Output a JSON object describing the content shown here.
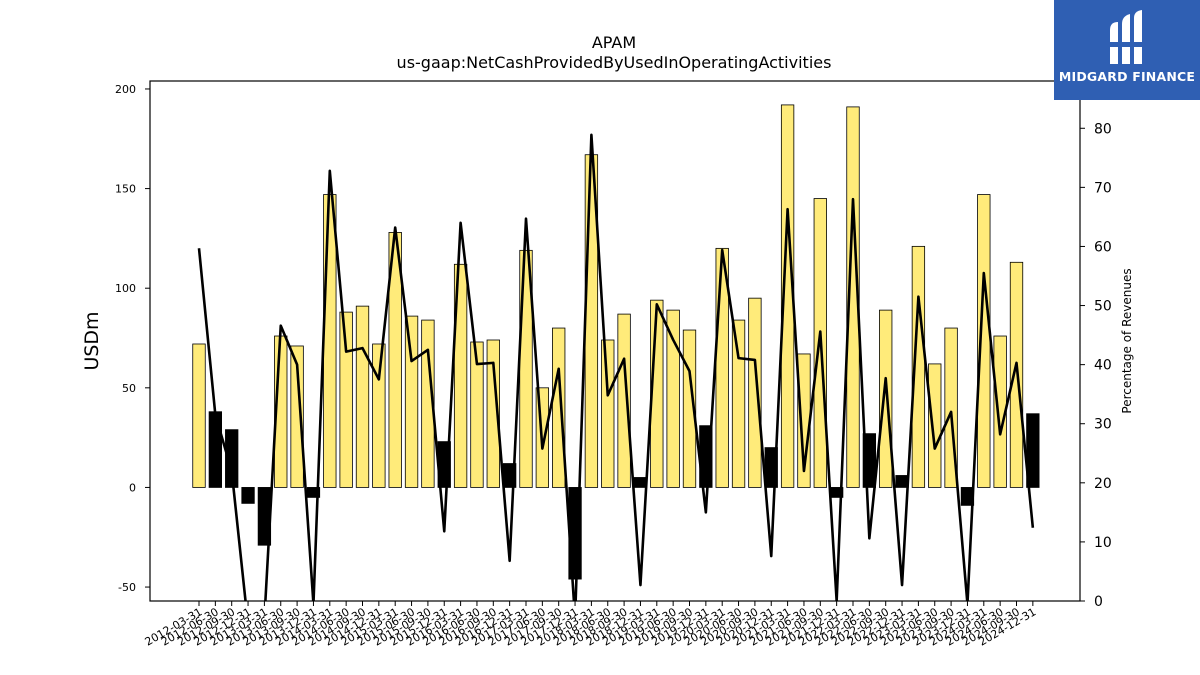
{
  "watermark": {
    "brand": "MIDGARD FINANCE",
    "bg_color": "#2f5fb3"
  },
  "chart_data": {
    "type": "bar",
    "title": "APAM",
    "subtitle": "us-gaap:NetCashProvidedByUsedInOperatingActivities",
    "ylabel": "USDm",
    "y2label": "Percentage of Revenues",
    "ylim": [
      -57,
      204
    ],
    "y2lim": [
      0,
      88
    ],
    "yticks": [
      -50,
      0,
      50,
      100,
      150,
      200
    ],
    "y2ticks": [
      0,
      10,
      20,
      30,
      40,
      50,
      60,
      70,
      80
    ],
    "categories": [
      "2012-03-31",
      "2012-06-30",
      "2012-09-30",
      "2012-12-31",
      "2013-03-31",
      "2013-06-30",
      "2013-09-30",
      "2013-12-31",
      "2014-03-31",
      "2014-06-30",
      "2014-09-30",
      "2014-12-31",
      "2015-03-31",
      "2015-06-30",
      "2015-09-30",
      "2015-12-31",
      "2016-03-31",
      "2016-06-30",
      "2016-09-30",
      "2016-12-31",
      "2017-03-31",
      "2017-06-30",
      "2017-09-30",
      "2017-12-31",
      "2018-03-31",
      "2018-06-30",
      "2018-09-30",
      "2018-12-31",
      "2019-03-31",
      "2019-06-30",
      "2019-09-30",
      "2019-12-31",
      "2020-03-31",
      "2020-06-30",
      "2020-09-30",
      "2020-12-31",
      "2021-03-31",
      "2021-06-30",
      "2021-09-30",
      "2021-12-31",
      "2022-03-31",
      "2022-06-30",
      "2022-09-30",
      "2022-12-31",
      "2023-03-31",
      "2023-06-30",
      "2023-09-30",
      "2023-12-31",
      "2024-03-31",
      "2024-06-30",
      "2024-09-30",
      "2024-12-31"
    ],
    "xtick_labels": [
      "2012-03-31",
      "2012-06-30",
      "2012-09-30",
      "2012-12-31",
      "2013-03-31",
      "2013-06-30",
      "2013-09-30",
      "2013-12-31",
      "2014-03-31",
      "2014-06-30",
      "2014-09-30",
      "2014-12-31",
      "2015-03-31",
      "2015-06-30",
      "2015-09-30",
      "2015-12-31",
      "2016-03-31",
      "2016-06-30",
      "2016-09-30",
      "2016-12-31",
      "2017-03-31",
      "2017-06-30",
      "2017-09-30",
      "2017-12-31",
      "2018-03-31",
      "2018-06-30",
      "2018-09-30",
      "2018-12-31",
      "2019-03-31",
      "2019-06-30",
      "2019-09-30",
      "2019-12-31",
      "2020-03-31",
      "2020-06-30",
      "2020-09-30",
      "2020-12-31",
      "2021-03-31",
      "2021-06-30",
      "2021-09-30",
      "2021-12-31",
      "2022-03-31",
      "2022-06-30",
      "2022-09-30",
      "2022-12-31",
      "2023-03-31",
      "2023-06-30",
      "2023-09-30",
      "2023-12-31",
      "2024-03-31",
      "2024-06-30",
      "2024-09-30",
      "2024-12-31"
    ],
    "series": [
      {
        "axis": "left",
        "type": "bar",
        "values": [
          72,
          38,
          29,
          -8,
          -29,
          76,
          71,
          -5,
          147,
          88,
          91,
          72,
          128,
          86,
          84,
          23,
          112,
          73,
          74,
          12,
          119,
          50,
          80,
          -46,
          167,
          74,
          87,
          5,
          94,
          89,
          79,
          31,
          120,
          84,
          95,
          20,
          192,
          67,
          145,
          -5,
          191,
          27,
          89,
          6,
          121,
          62,
          80,
          -9,
          147,
          76,
          113,
          37
        ]
      },
      {
        "axis": "right",
        "type": "line",
        "values": [
          59.7,
          31.5,
          22,
          -4,
          -3,
          46.6,
          40,
          -0.5,
          72.8,
          42.2,
          42.8,
          37.5,
          63.2,
          40.6,
          42.5,
          11.8,
          64,
          40.1,
          40.3,
          6.8,
          64.7,
          25.8,
          39.3,
          -3,
          78.9,
          34.8,
          41,
          2.7,
          50.2,
          44.2,
          38.9,
          15,
          59.4,
          41.1,
          40.8,
          7.6,
          66.3,
          22,
          45.6,
          0,
          68,
          10.6,
          37.7,
          2.7,
          51.5,
          25.8,
          32,
          -0.5,
          55.5,
          28.2,
          40.3,
          12.4
        ]
      }
    ],
    "bar_colors": {
      "positive": "#ffeb7a",
      "negative_or_small": "#000000",
      "edge": "#000000"
    },
    "line_color": "#000000",
    "grid": false,
    "legend": "none"
  }
}
